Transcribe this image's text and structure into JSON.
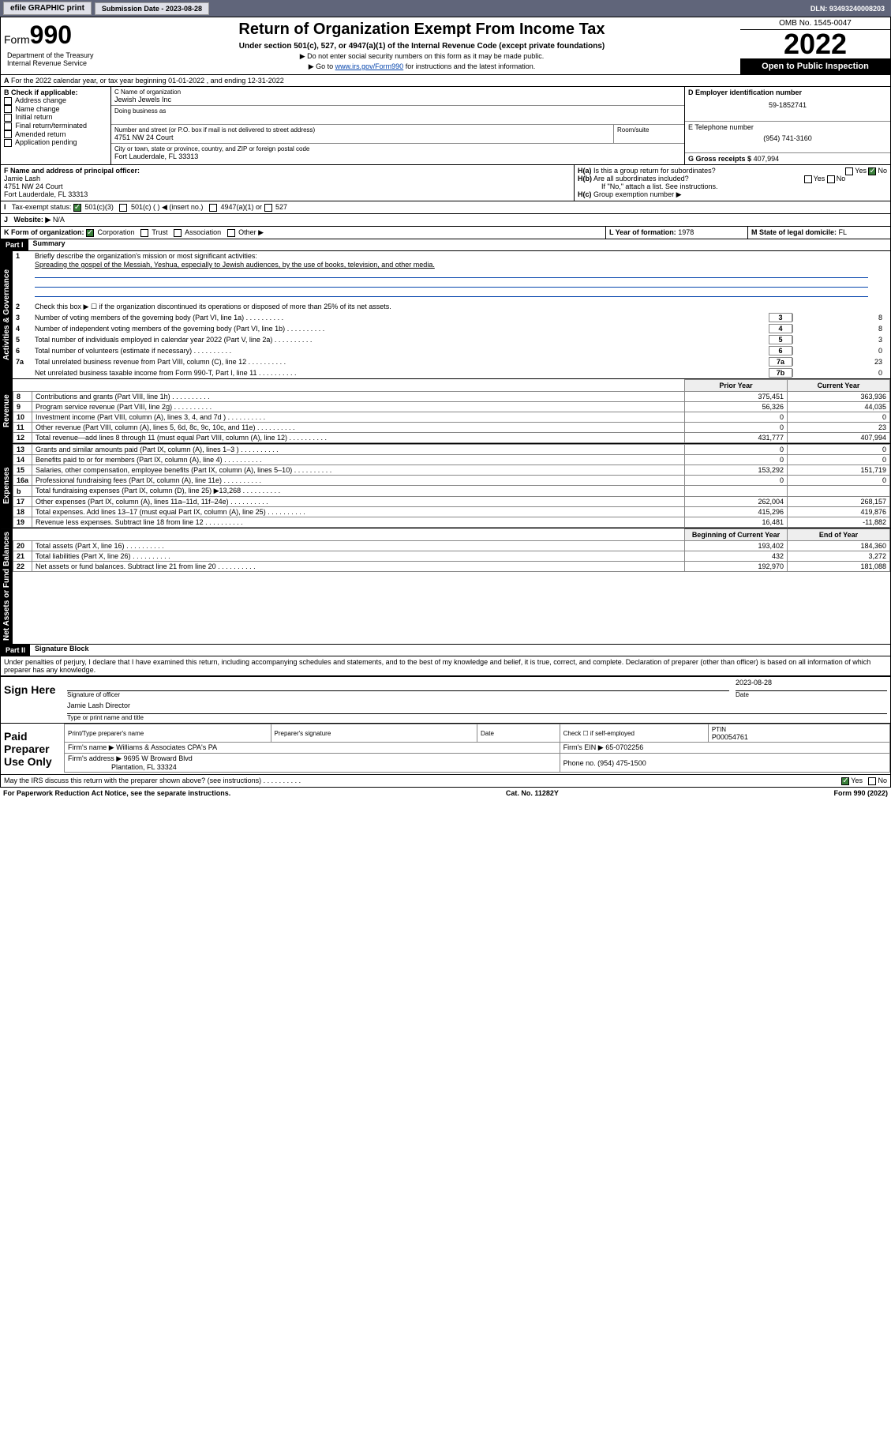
{
  "topbar": {
    "print_btn": "efile GRAPHIC print",
    "submission_label": "Submission Date - 2023-08-28",
    "dln_label": "DLN: 93493240008203"
  },
  "header": {
    "form_word": "Form",
    "form_num": "990",
    "title": "Return of Organization Exempt From Income Tax",
    "subtitle": "Under section 501(c), 527, or 4947(a)(1) of the Internal Revenue Code (except private foundations)",
    "note1": "▶ Do not enter social security numbers on this form as it may be made public.",
    "note2_prefix": "▶ Go to ",
    "note2_link": "www.irs.gov/Form990",
    "note2_suffix": " for instructions and the latest information.",
    "dept": "Department of the Treasury\nInternal Revenue Service",
    "omb": "OMB No. 1545-0047",
    "year": "2022",
    "open": "Open to Public Inspection"
  },
  "A": {
    "text": "For the 2022 calendar year, or tax year beginning 01-01-2022   , and ending 12-31-2022"
  },
  "B": {
    "label": "B Check if applicable:",
    "items": [
      "Address change",
      "Name change",
      "Initial return",
      "Final return/terminated",
      "Amended return",
      "Application pending"
    ]
  },
  "C": {
    "name_label": "C Name of organization",
    "name": "Jewish Jewels Inc",
    "dba_label": "Doing business as",
    "street_label": "Number and street (or P.O. box if mail is not delivered to street address)",
    "room_label": "Room/suite",
    "street": "4751 NW 24 Court",
    "city_label": "City or town, state or province, country, and ZIP or foreign postal code",
    "city": "Fort Lauderdale, FL  33313"
  },
  "D": {
    "label": "D Employer identification number",
    "value": "59-1852741"
  },
  "E": {
    "label": "E Telephone number",
    "value": "(954) 741-3160"
  },
  "G": {
    "label": "G Gross receipts $",
    "value": "407,994"
  },
  "F": {
    "label": "F Name and address of principal officer:",
    "name": "Jamie Lash",
    "addr1": "4751 NW 24 Court",
    "addr2": "Fort Lauderdale, FL  33313"
  },
  "H": {
    "a": "Is this a group return for subordinates?",
    "b": "Are all subordinates included?",
    "b_note": "If \"No,\" attach a list. See instructions.",
    "c": "Group exemption number ▶",
    "yes": "Yes",
    "no": "No"
  },
  "I": {
    "label": "Tax-exempt status:",
    "opt1": "501(c)(3)",
    "opt2": "501(c) (  ) ◀ (insert no.)",
    "opt3": "4947(a)(1) or",
    "opt4": "527"
  },
  "J": {
    "label": "Website: ▶",
    "value": "N/A"
  },
  "K": {
    "label": "K Form of organization:",
    "opts": [
      "Corporation",
      "Trust",
      "Association",
      "Other ▶"
    ]
  },
  "L": {
    "label": "L Year of formation:",
    "value": "1978"
  },
  "M": {
    "label": "M State of legal domicile:",
    "value": "FL"
  },
  "part1": {
    "bar": "Part I",
    "title": "Summary",
    "sidetabs": [
      "Activities & Governance",
      "Revenue",
      "Expenses",
      "Net Assets or Fund Balances"
    ],
    "l1_label": "Briefly describe the organization's mission or most significant activities:",
    "l1_text": "Spreading the gospel of the Messiah, Yeshua, especially to Jewish audiences, by the use of books, television, and other media.",
    "l2": "Check this box ▶ ☐  if the organization discontinued its operations or disposed of more than 25% of its net assets.",
    "lines_gov": [
      {
        "n": "3",
        "t": "Number of voting members of the governing body (Part VI, line 1a)",
        "box": "3",
        "v": "8"
      },
      {
        "n": "4",
        "t": "Number of independent voting members of the governing body (Part VI, line 1b)",
        "box": "4",
        "v": "8"
      },
      {
        "n": "5",
        "t": "Total number of individuals employed in calendar year 2022 (Part V, line 2a)",
        "box": "5",
        "v": "3"
      },
      {
        "n": "6",
        "t": "Total number of volunteers (estimate if necessary)",
        "box": "6",
        "v": "0"
      },
      {
        "n": "7a",
        "t": "Total unrelated business revenue from Part VIII, column (C), line 12",
        "box": "7a",
        "v": "23"
      },
      {
        "n": "",
        "t": "Net unrelated business taxable income from Form 990-T, Part I, line 11",
        "box": "7b",
        "v": "0"
      }
    ],
    "col_prior": "Prior Year",
    "col_current": "Current Year",
    "rev_rows": [
      {
        "n": "8",
        "t": "Contributions and grants (Part VIII, line 1h)",
        "p": "375,451",
        "c": "363,936"
      },
      {
        "n": "9",
        "t": "Program service revenue (Part VIII, line 2g)",
        "p": "56,326",
        "c": "44,035"
      },
      {
        "n": "10",
        "t": "Investment income (Part VIII, column (A), lines 3, 4, and 7d )",
        "p": "0",
        "c": "0"
      },
      {
        "n": "11",
        "t": "Other revenue (Part VIII, column (A), lines 5, 6d, 8c, 9c, 10c, and 11e)",
        "p": "0",
        "c": "23"
      },
      {
        "n": "12",
        "t": "Total revenue—add lines 8 through 11 (must equal Part VIII, column (A), line 12)",
        "p": "431,777",
        "c": "407,994"
      }
    ],
    "exp_rows": [
      {
        "n": "13",
        "t": "Grants and similar amounts paid (Part IX, column (A), lines 1–3 )",
        "p": "0",
        "c": "0"
      },
      {
        "n": "14",
        "t": "Benefits paid to or for members (Part IX, column (A), line 4)",
        "p": "0",
        "c": "0"
      },
      {
        "n": "15",
        "t": "Salaries, other compensation, employee benefits (Part IX, column (A), lines 5–10)",
        "p": "153,292",
        "c": "151,719"
      },
      {
        "n": "16a",
        "t": "Professional fundraising fees (Part IX, column (A), line 11e)",
        "p": "0",
        "c": "0"
      },
      {
        "n": "b",
        "t": "Total fundraising expenses (Part IX, column (D), line 25) ▶13,268",
        "p": "",
        "c": ""
      },
      {
        "n": "17",
        "t": "Other expenses (Part IX, column (A), lines 11a–11d, 11f–24e)",
        "p": "262,004",
        "c": "268,157"
      },
      {
        "n": "18",
        "t": "Total expenses. Add lines 13–17 (must equal Part IX, column (A), line 25)",
        "p": "415,296",
        "c": "419,876"
      },
      {
        "n": "19",
        "t": "Revenue less expenses. Subtract line 18 from line 12",
        "p": "16,481",
        "c": "-11,882"
      }
    ],
    "col_begin": "Beginning of Current Year",
    "col_end": "End of Year",
    "net_rows": [
      {
        "n": "20",
        "t": "Total assets (Part X, line 16)",
        "p": "193,402",
        "c": "184,360"
      },
      {
        "n": "21",
        "t": "Total liabilities (Part X, line 26)",
        "p": "432",
        "c": "3,272"
      },
      {
        "n": "22",
        "t": "Net assets or fund balances. Subtract line 21 from line 20",
        "p": "192,970",
        "c": "181,088"
      }
    ]
  },
  "part2": {
    "bar": "Part II",
    "title": "Signature Block",
    "decl": "Under penalties of perjury, I declare that I have examined this return, including accompanying schedules and statements, and to the best of my knowledge and belief, it is true, correct, and complete. Declaration of preparer (other than officer) is based on all information of which preparer has any knowledge.",
    "sign_here": "Sign Here",
    "sig_officer": "Signature of officer",
    "sig_date": "Date",
    "sig_date_val": "2023-08-28",
    "sig_name": "Jamie Lash  Director",
    "sig_name_label": "Type or print name and title",
    "paid": "Paid Preparer Use Only",
    "pp_name_label": "Print/Type preparer's name",
    "pp_sig_label": "Preparer's signature",
    "pp_date_label": "Date",
    "pp_check": "Check ☐ if self-employed",
    "pp_ptin_label": "PTIN",
    "pp_ptin": "P00054761",
    "firm_name_label": "Firm's name    ▶",
    "firm_name": "Williams & Associates CPA's PA",
    "firm_ein_label": "Firm's EIN ▶",
    "firm_ein": "65-0702256",
    "firm_addr_label": "Firm's address ▶",
    "firm_addr1": "9695 W Broward Blvd",
    "firm_addr2": "Plantation, FL  33324",
    "firm_phone_label": "Phone no.",
    "firm_phone": "(954) 475-1500",
    "discuss": "May the IRS discuss this return with the preparer shown above? (see instructions)"
  },
  "footer": {
    "left": "For Paperwork Reduction Act Notice, see the separate instructions.",
    "mid": "Cat. No. 11282Y",
    "right": "Form 990 (2022)"
  }
}
